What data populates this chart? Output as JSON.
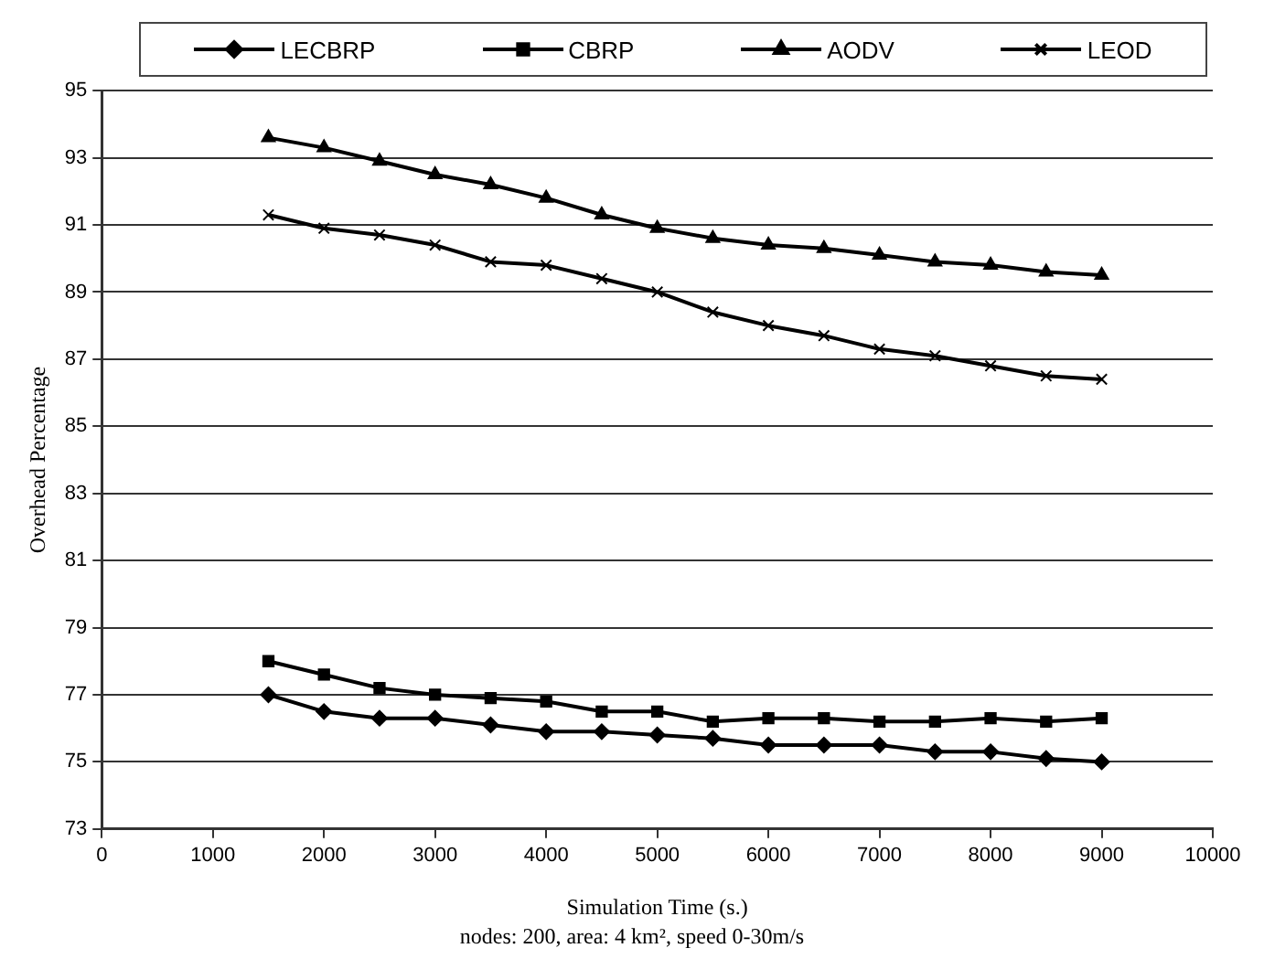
{
  "chart_data": {
    "type": "line",
    "xlabel": "Simulation Time (s.)",
    "ylabel": "Overhead Percentage",
    "annotations": [
      "nodes: 200, area: 4 km², speed 0-30m/s"
    ],
    "x": [
      1500,
      2000,
      2500,
      3000,
      3500,
      4000,
      4500,
      5000,
      5500,
      6000,
      6500,
      7000,
      7500,
      8000,
      8500,
      9000
    ],
    "xlim": [
      0,
      10000
    ],
    "xticks": [
      0,
      1000,
      2000,
      3000,
      4000,
      5000,
      6000,
      7000,
      8000,
      9000,
      10000
    ],
    "ylim": [
      73,
      95
    ],
    "yticks": [
      73,
      75,
      77,
      79,
      81,
      83,
      85,
      87,
      89,
      91,
      93,
      95
    ],
    "grid": "y",
    "legend": "top",
    "line_style": "solid",
    "series": [
      {
        "name": "LECBRP",
        "color": "#000000",
        "marker": "diamond",
        "values": [
          77.0,
          76.5,
          76.3,
          76.3,
          76.1,
          75.9,
          75.9,
          75.8,
          75.7,
          75.5,
          75.5,
          75.5,
          75.3,
          75.3,
          75.1,
          75.0
        ]
      },
      {
        "name": "CBRP",
        "color": "#000000",
        "marker": "square",
        "values": [
          78.0,
          77.6,
          77.2,
          77.0,
          76.9,
          76.8,
          76.5,
          76.5,
          76.2,
          76.3,
          76.3,
          76.2,
          76.2,
          76.3,
          76.2,
          76.3
        ]
      },
      {
        "name": "AODV",
        "color": "#000000",
        "marker": "triangle",
        "values": [
          93.6,
          93.3,
          92.9,
          92.5,
          92.2,
          91.8,
          91.3,
          90.9,
          90.6,
          90.4,
          90.3,
          90.1,
          89.9,
          89.8,
          89.6,
          89.5
        ]
      },
      {
        "name": "LEOD",
        "color": "#000000",
        "marker": "cross",
        "values": [
          91.3,
          90.9,
          90.7,
          90.4,
          89.9,
          89.8,
          89.4,
          89.0,
          88.4,
          88.0,
          87.7,
          87.3,
          87.1,
          86.8,
          86.5,
          86.4
        ]
      }
    ]
  }
}
